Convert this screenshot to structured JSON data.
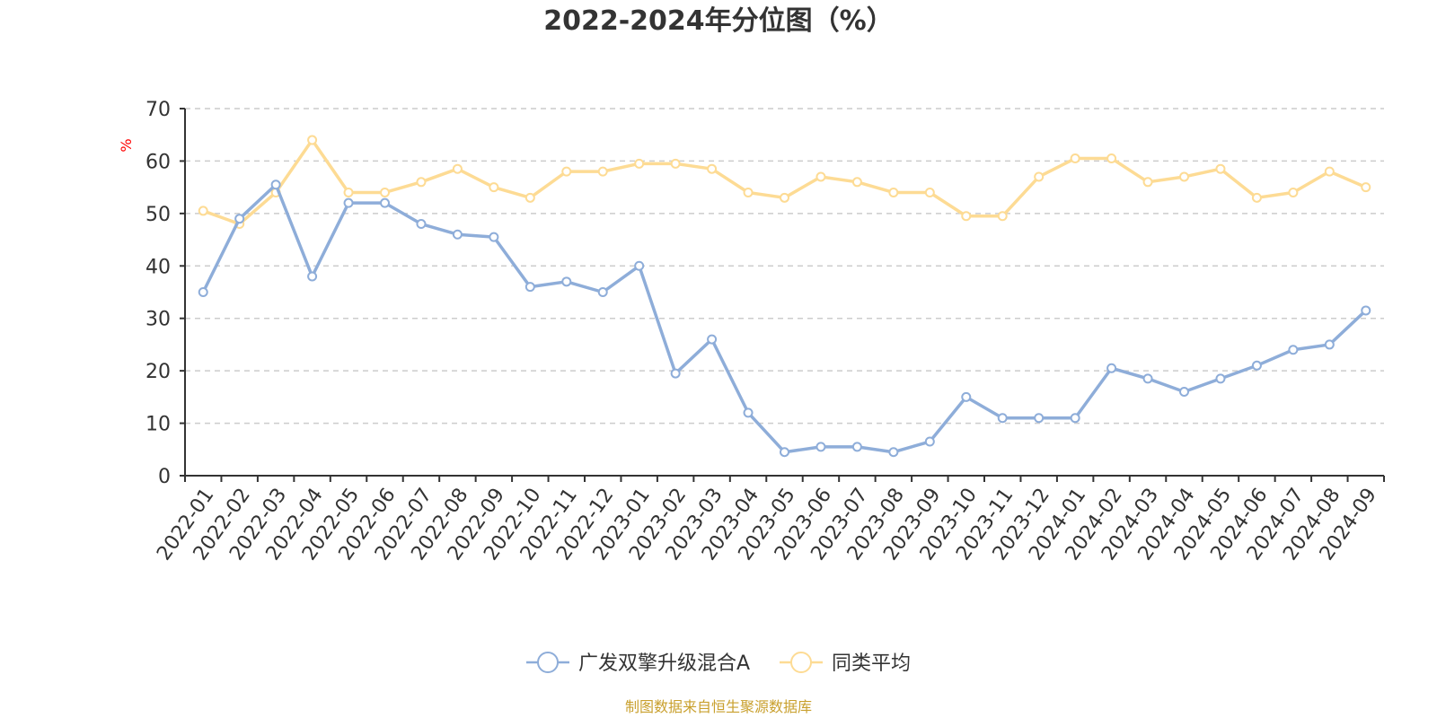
{
  "chart_data": {
    "type": "line",
    "title": "2022-2024年分位图（%）",
    "ylabel": "%",
    "ylim": [
      0,
      70
    ],
    "yticks": [
      0,
      10,
      20,
      30,
      40,
      50,
      60,
      70
    ],
    "grid": true,
    "legend_position": "bottom",
    "categories": [
      "2022-01",
      "2022-02",
      "2022-03",
      "2022-04",
      "2022-05",
      "2022-06",
      "2022-07",
      "2022-08",
      "2022-09",
      "2022-10",
      "2022-11",
      "2022-12",
      "2023-01",
      "2023-02",
      "2023-03",
      "2023-04",
      "2023-05",
      "2023-06",
      "2023-07",
      "2023-08",
      "2023-09",
      "2023-10",
      "2023-11",
      "2023-12",
      "2024-01",
      "2024-02",
      "2024-03",
      "2024-04",
      "2024-05",
      "2024-06",
      "2024-07",
      "2024-08",
      "2024-09"
    ],
    "series": [
      {
        "name": "广发双擎升级混合A",
        "color": "#8EADD9",
        "values": [
          35,
          49,
          55.5,
          38,
          52,
          52,
          48,
          46,
          45.5,
          36,
          37,
          35,
          40,
          19.5,
          26,
          12,
          4.5,
          5.5,
          5.5,
          4.5,
          6.5,
          15,
          11,
          11,
          11,
          20.5,
          18.5,
          16,
          18.5,
          21,
          24,
          25,
          31.5
        ]
      },
      {
        "name": "同类平均",
        "color": "#FDDB94",
        "values": [
          50.5,
          48,
          54,
          64,
          54,
          54,
          56,
          58.5,
          55,
          53,
          58,
          58,
          59.5,
          59.5,
          58.5,
          54,
          53,
          57,
          56,
          54,
          54,
          49.5,
          49.5,
          57,
          60.5,
          60.5,
          56,
          57,
          58.5,
          53,
          54,
          58,
          55
        ]
      }
    ],
    "source": "制图数据来自恒生聚源数据库",
    "colors": {
      "axis": "#333333",
      "grid": "#cccccc",
      "ylabel": "#ff0000",
      "source": "#c9a02e"
    }
  }
}
